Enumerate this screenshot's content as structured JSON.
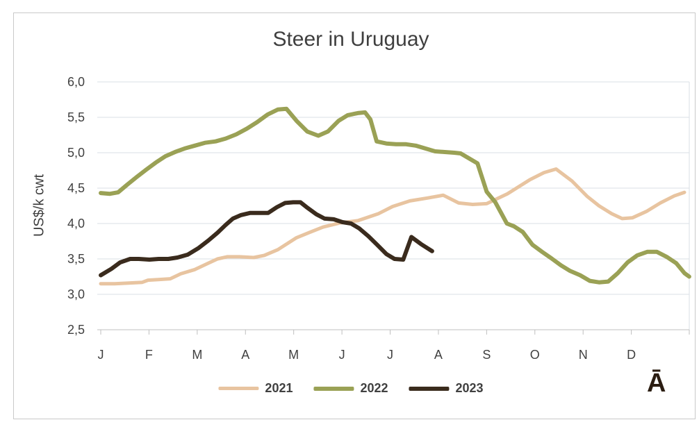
{
  "figure": {
    "corner_mark": "Ā"
  },
  "chart_data": {
    "type": "line",
    "title": "Steer in Uruguay",
    "ylabel": "US$/k cwt",
    "grid": true,
    "legend_position": "bottom",
    "x_axis": {
      "tick_labels": [
        "J",
        "F",
        "M",
        "A",
        "M",
        "J",
        "J",
        "A",
        "S",
        "O",
        "N",
        "D"
      ],
      "unit": "month (0 = January tick, fractional = weeks within year)"
    },
    "y_axis": {
      "tick_labels": [
        "6,0",
        "5,5",
        "5,0",
        "4,5",
        "4,0",
        "3,5",
        "3,0",
        "2,5"
      ],
      "tick_values": [
        6.0,
        5.5,
        5.0,
        4.5,
        4.0,
        3.5,
        3.0,
        2.5
      ],
      "range": [
        2.5,
        6.0
      ],
      "decimal_separator": ","
    },
    "series": [
      {
        "name": "2021",
        "color": "#e8c4a0",
        "stroke_width": 5,
        "points": [
          [
            0.0,
            3.15
          ],
          [
            0.29,
            3.15
          ],
          [
            0.58,
            3.16
          ],
          [
            0.86,
            3.17
          ],
          [
            0.98,
            3.2
          ],
          [
            1.22,
            3.21
          ],
          [
            1.44,
            3.22
          ],
          [
            1.66,
            3.29
          ],
          [
            1.95,
            3.35
          ],
          [
            2.23,
            3.44
          ],
          [
            2.42,
            3.5
          ],
          [
            2.62,
            3.53
          ],
          [
            2.88,
            3.53
          ],
          [
            3.17,
            3.52
          ],
          [
            3.39,
            3.55
          ],
          [
            3.67,
            3.63
          ],
          [
            4.06,
            3.8
          ],
          [
            4.35,
            3.88
          ],
          [
            4.61,
            3.95
          ],
          [
            4.97,
            4.01
          ],
          [
            5.33,
            4.04
          ],
          [
            5.76,
            4.14
          ],
          [
            6.05,
            4.24
          ],
          [
            6.41,
            4.32
          ],
          [
            6.77,
            4.36
          ],
          [
            7.1,
            4.4
          ],
          [
            7.42,
            4.29
          ],
          [
            7.71,
            4.27
          ],
          [
            8.0,
            4.28
          ],
          [
            8.43,
            4.42
          ],
          [
            8.9,
            4.62
          ],
          [
            9.19,
            4.72
          ],
          [
            9.44,
            4.77
          ],
          [
            9.77,
            4.6
          ],
          [
            10.09,
            4.38
          ],
          [
            10.33,
            4.25
          ],
          [
            10.59,
            4.14
          ],
          [
            10.81,
            4.07
          ],
          [
            11.02,
            4.08
          ],
          [
            11.31,
            4.17
          ],
          [
            11.6,
            4.29
          ],
          [
            11.89,
            4.39
          ],
          [
            12.1,
            4.44
          ]
        ]
      },
      {
        "name": "2022",
        "color": "#9aa155",
        "stroke_width": 6,
        "points": [
          [
            0.0,
            4.43
          ],
          [
            0.19,
            4.42
          ],
          [
            0.36,
            4.44
          ],
          [
            0.55,
            4.55
          ],
          [
            0.75,
            4.66
          ],
          [
            0.94,
            4.76
          ],
          [
            1.14,
            4.86
          ],
          [
            1.34,
            4.95
          ],
          [
            1.54,
            5.01
          ],
          [
            1.74,
            5.06
          ],
          [
            1.95,
            5.1
          ],
          [
            2.16,
            5.14
          ],
          [
            2.38,
            5.16
          ],
          [
            2.59,
            5.2
          ],
          [
            2.81,
            5.26
          ],
          [
            3.03,
            5.34
          ],
          [
            3.24,
            5.43
          ],
          [
            3.46,
            5.54
          ],
          [
            3.67,
            5.61
          ],
          [
            3.85,
            5.62
          ],
          [
            4.06,
            5.45
          ],
          [
            4.28,
            5.3
          ],
          [
            4.51,
            5.24
          ],
          [
            4.71,
            5.3
          ],
          [
            4.93,
            5.45
          ],
          [
            5.12,
            5.53
          ],
          [
            5.33,
            5.56
          ],
          [
            5.48,
            5.57
          ],
          [
            5.59,
            5.47
          ],
          [
            5.72,
            5.16
          ],
          [
            5.92,
            5.13
          ],
          [
            6.12,
            5.12
          ],
          [
            6.33,
            5.12
          ],
          [
            6.53,
            5.1
          ],
          [
            6.73,
            5.06
          ],
          [
            6.93,
            5.02
          ],
          [
            7.13,
            5.01
          ],
          [
            7.33,
            5.0
          ],
          [
            7.46,
            4.99
          ],
          [
            7.61,
            4.93
          ],
          [
            7.81,
            4.85
          ],
          [
            8.0,
            4.45
          ],
          [
            8.18,
            4.3
          ],
          [
            8.3,
            4.15
          ],
          [
            8.42,
            4.0
          ],
          [
            8.57,
            3.96
          ],
          [
            8.75,
            3.88
          ],
          [
            8.95,
            3.7
          ],
          [
            9.15,
            3.6
          ],
          [
            9.34,
            3.51
          ],
          [
            9.54,
            3.41
          ],
          [
            9.73,
            3.33
          ],
          [
            9.94,
            3.27
          ],
          [
            10.14,
            3.19
          ],
          [
            10.33,
            3.17
          ],
          [
            10.52,
            3.18
          ],
          [
            10.72,
            3.3
          ],
          [
            10.92,
            3.45
          ],
          [
            11.12,
            3.55
          ],
          [
            11.33,
            3.6
          ],
          [
            11.53,
            3.6
          ],
          [
            11.73,
            3.53
          ],
          [
            11.93,
            3.44
          ],
          [
            12.1,
            3.3
          ],
          [
            12.2,
            3.25
          ]
        ]
      },
      {
        "name": "2023",
        "color": "#3a2b1d",
        "stroke_width": 6,
        "points": [
          [
            0.0,
            3.27
          ],
          [
            0.22,
            3.36
          ],
          [
            0.4,
            3.45
          ],
          [
            0.61,
            3.5
          ],
          [
            0.79,
            3.5
          ],
          [
            1.01,
            3.49
          ],
          [
            1.2,
            3.5
          ],
          [
            1.4,
            3.5
          ],
          [
            1.59,
            3.52
          ],
          [
            1.8,
            3.56
          ],
          [
            2.02,
            3.65
          ],
          [
            2.23,
            3.76
          ],
          [
            2.42,
            3.87
          ],
          [
            2.59,
            3.98
          ],
          [
            2.74,
            4.07
          ],
          [
            2.91,
            4.12
          ],
          [
            3.1,
            4.15
          ],
          [
            3.29,
            4.15
          ],
          [
            3.47,
            4.15
          ],
          [
            3.65,
            4.23
          ],
          [
            3.82,
            4.29
          ],
          [
            3.99,
            4.3
          ],
          [
            4.14,
            4.3
          ],
          [
            4.29,
            4.22
          ],
          [
            4.47,
            4.13
          ],
          [
            4.64,
            4.07
          ],
          [
            4.83,
            4.06
          ],
          [
            5.01,
            4.02
          ],
          [
            5.19,
            4.0
          ],
          [
            5.36,
            3.93
          ],
          [
            5.55,
            3.82
          ],
          [
            5.73,
            3.7
          ],
          [
            5.92,
            3.57
          ],
          [
            6.09,
            3.5
          ],
          [
            6.27,
            3.49
          ],
          [
            6.44,
            3.81
          ],
          [
            6.64,
            3.71
          ],
          [
            6.87,
            3.61
          ]
        ]
      }
    ]
  },
  "style": {
    "gridline_color": "#dadfe6",
    "axis_color": "#bfbfbf",
    "text_color": "#404040",
    "border_color": "#c9c9c9"
  }
}
